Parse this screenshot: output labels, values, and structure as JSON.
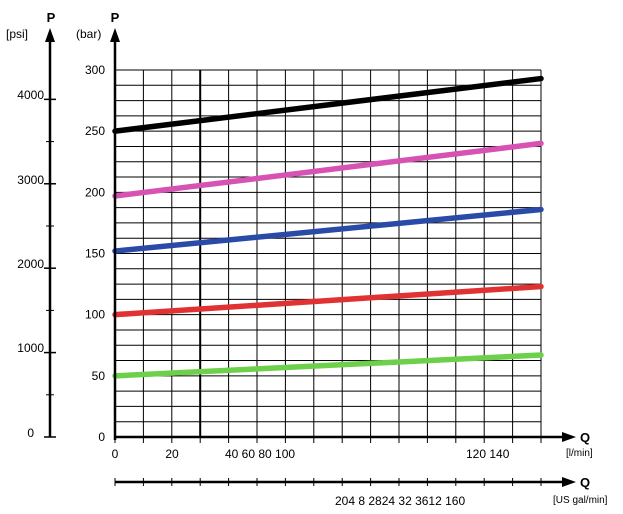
{
  "chart_data": {
    "type": "line",
    "title": "",
    "x_axis": {
      "label": "Q",
      "unit": "[l/min]",
      "range": [
        0,
        150
      ],
      "tick_labels": [
        "0",
        "20",
        "40 60 80 100",
        "120 140"
      ]
    },
    "x_axis_secondary": {
      "label": "Q",
      "unit": "[US gal/min]",
      "tick_labels": [
        "204 8 2824 32 3612 160"
      ]
    },
    "y_axis": {
      "label": "P",
      "unit": "(bar)",
      "range": [
        0,
        300
      ],
      "ticks": [
        0,
        50,
        100,
        150,
        200,
        250,
        300
      ],
      "tick_labels": [
        "0",
        "50",
        "100",
        "150",
        "200",
        "250",
        "300"
      ]
    },
    "y_axis_secondary": {
      "label": "P",
      "unit": "[psi]",
      "tick_labels": [
        "0",
        "1000",
        "2000",
        "3000",
        "4000"
      ],
      "tick_values_bar": [
        0,
        69,
        138,
        207,
        276
      ]
    },
    "grid": true,
    "series": [
      {
        "x": [
          0,
          150
        ],
        "y": [
          250,
          293
        ],
        "color": "#000000"
      },
      {
        "x": [
          0,
          150
        ],
        "y": [
          197,
          240
        ],
        "color": "#d653b3"
      },
      {
        "x": [
          0,
          150
        ],
        "y": [
          152,
          186
        ],
        "color": "#2a4aa8"
      },
      {
        "x": [
          0,
          150
        ],
        "y": [
          100,
          123
        ],
        "color": "#e03232"
      },
      {
        "x": [
          0,
          150
        ],
        "y": [
          50,
          67
        ],
        "color": "#6cd04a"
      }
    ]
  }
}
